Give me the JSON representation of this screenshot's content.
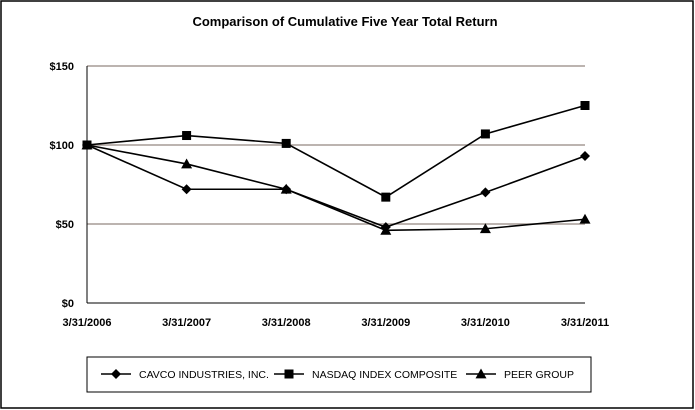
{
  "chart_data": {
    "type": "line",
    "title": "Comparison of Cumulative Five Year Total Return",
    "categories": [
      "3/31/2006",
      "3/31/2007",
      "3/31/2008",
      "3/31/2009",
      "3/31/2010",
      "3/31/2011"
    ],
    "ylim": [
      0,
      150
    ],
    "y_ticks": [
      0,
      50,
      100,
      150
    ],
    "y_tick_labels": [
      "$0",
      "$50",
      "$100",
      "$150"
    ],
    "grid": "horizontal",
    "legend_position": "bottom",
    "colors": {
      "grid": "#a69c96",
      "series": "#000000"
    },
    "series": [
      {
        "name": "CAVCO INDUSTRIES, INC.",
        "marker": "diamond",
        "values": [
          100,
          72,
          72,
          48,
          70,
          93
        ]
      },
      {
        "name": "NASDAQ INDEX COMPOSITE",
        "marker": "square",
        "values": [
          100,
          106,
          101,
          67,
          107,
          125
        ]
      },
      {
        "name": "PEER GROUP",
        "marker": "triangle",
        "values": [
          100,
          88,
          72,
          46,
          47,
          53
        ]
      }
    ]
  }
}
